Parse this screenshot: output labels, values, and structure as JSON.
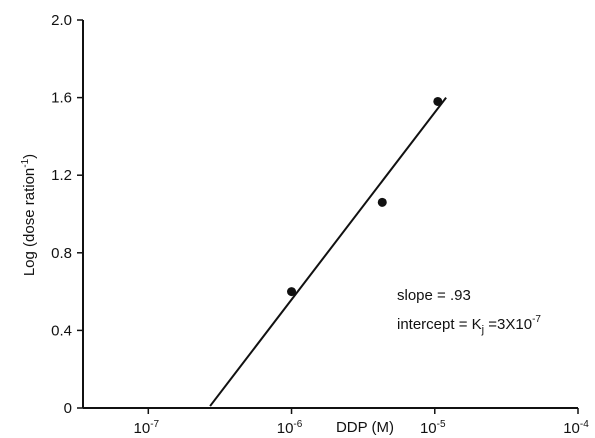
{
  "chart_data": {
    "type": "scatter",
    "xlabel": "DDP (M)",
    "ylabel": "Log (dose ration",
    "ylabel_sup": "-1",
    "x_scale": "log",
    "xlim": [
      3.5e-08,
      0.0001
    ],
    "ylim": [
      0,
      2.0
    ],
    "x_ticks": [
      {
        "value": 1e-07,
        "base": "10",
        "exp": "-7"
      },
      {
        "value": 1e-06,
        "base": "10",
        "exp": "-6"
      },
      {
        "value": 1e-05,
        "base": "10",
        "exp": "-5"
      },
      {
        "value": 0.0001,
        "base": "10",
        "exp": "-4"
      }
    ],
    "y_ticks": [
      {
        "value": 0,
        "label": "0"
      },
      {
        "value": 0.4,
        "label": "0.4"
      },
      {
        "value": 0.8,
        "label": "0.8"
      },
      {
        "value": 1.2,
        "label": "1.2"
      },
      {
        "value": 1.6,
        "label": "1.6"
      },
      {
        "value": 2.0,
        "label": "2.0"
      }
    ],
    "points": [
      {
        "x": 1e-06,
        "y": 0.6
      },
      {
        "x": 4.3e-06,
        "y": 1.06
      },
      {
        "x": 1.05e-05,
        "y": 1.58
      }
    ],
    "fit_line": {
      "x": [
        2.7e-07,
        1.2e-05
      ],
      "y": [
        0.01,
        1.6
      ]
    },
    "annotations": {
      "slope_label": "slope = .93",
      "intercept_label": "intercept = K",
      "intercept_sub": "j",
      "intercept_value": " =3X10",
      "intercept_exp": "-7"
    }
  }
}
